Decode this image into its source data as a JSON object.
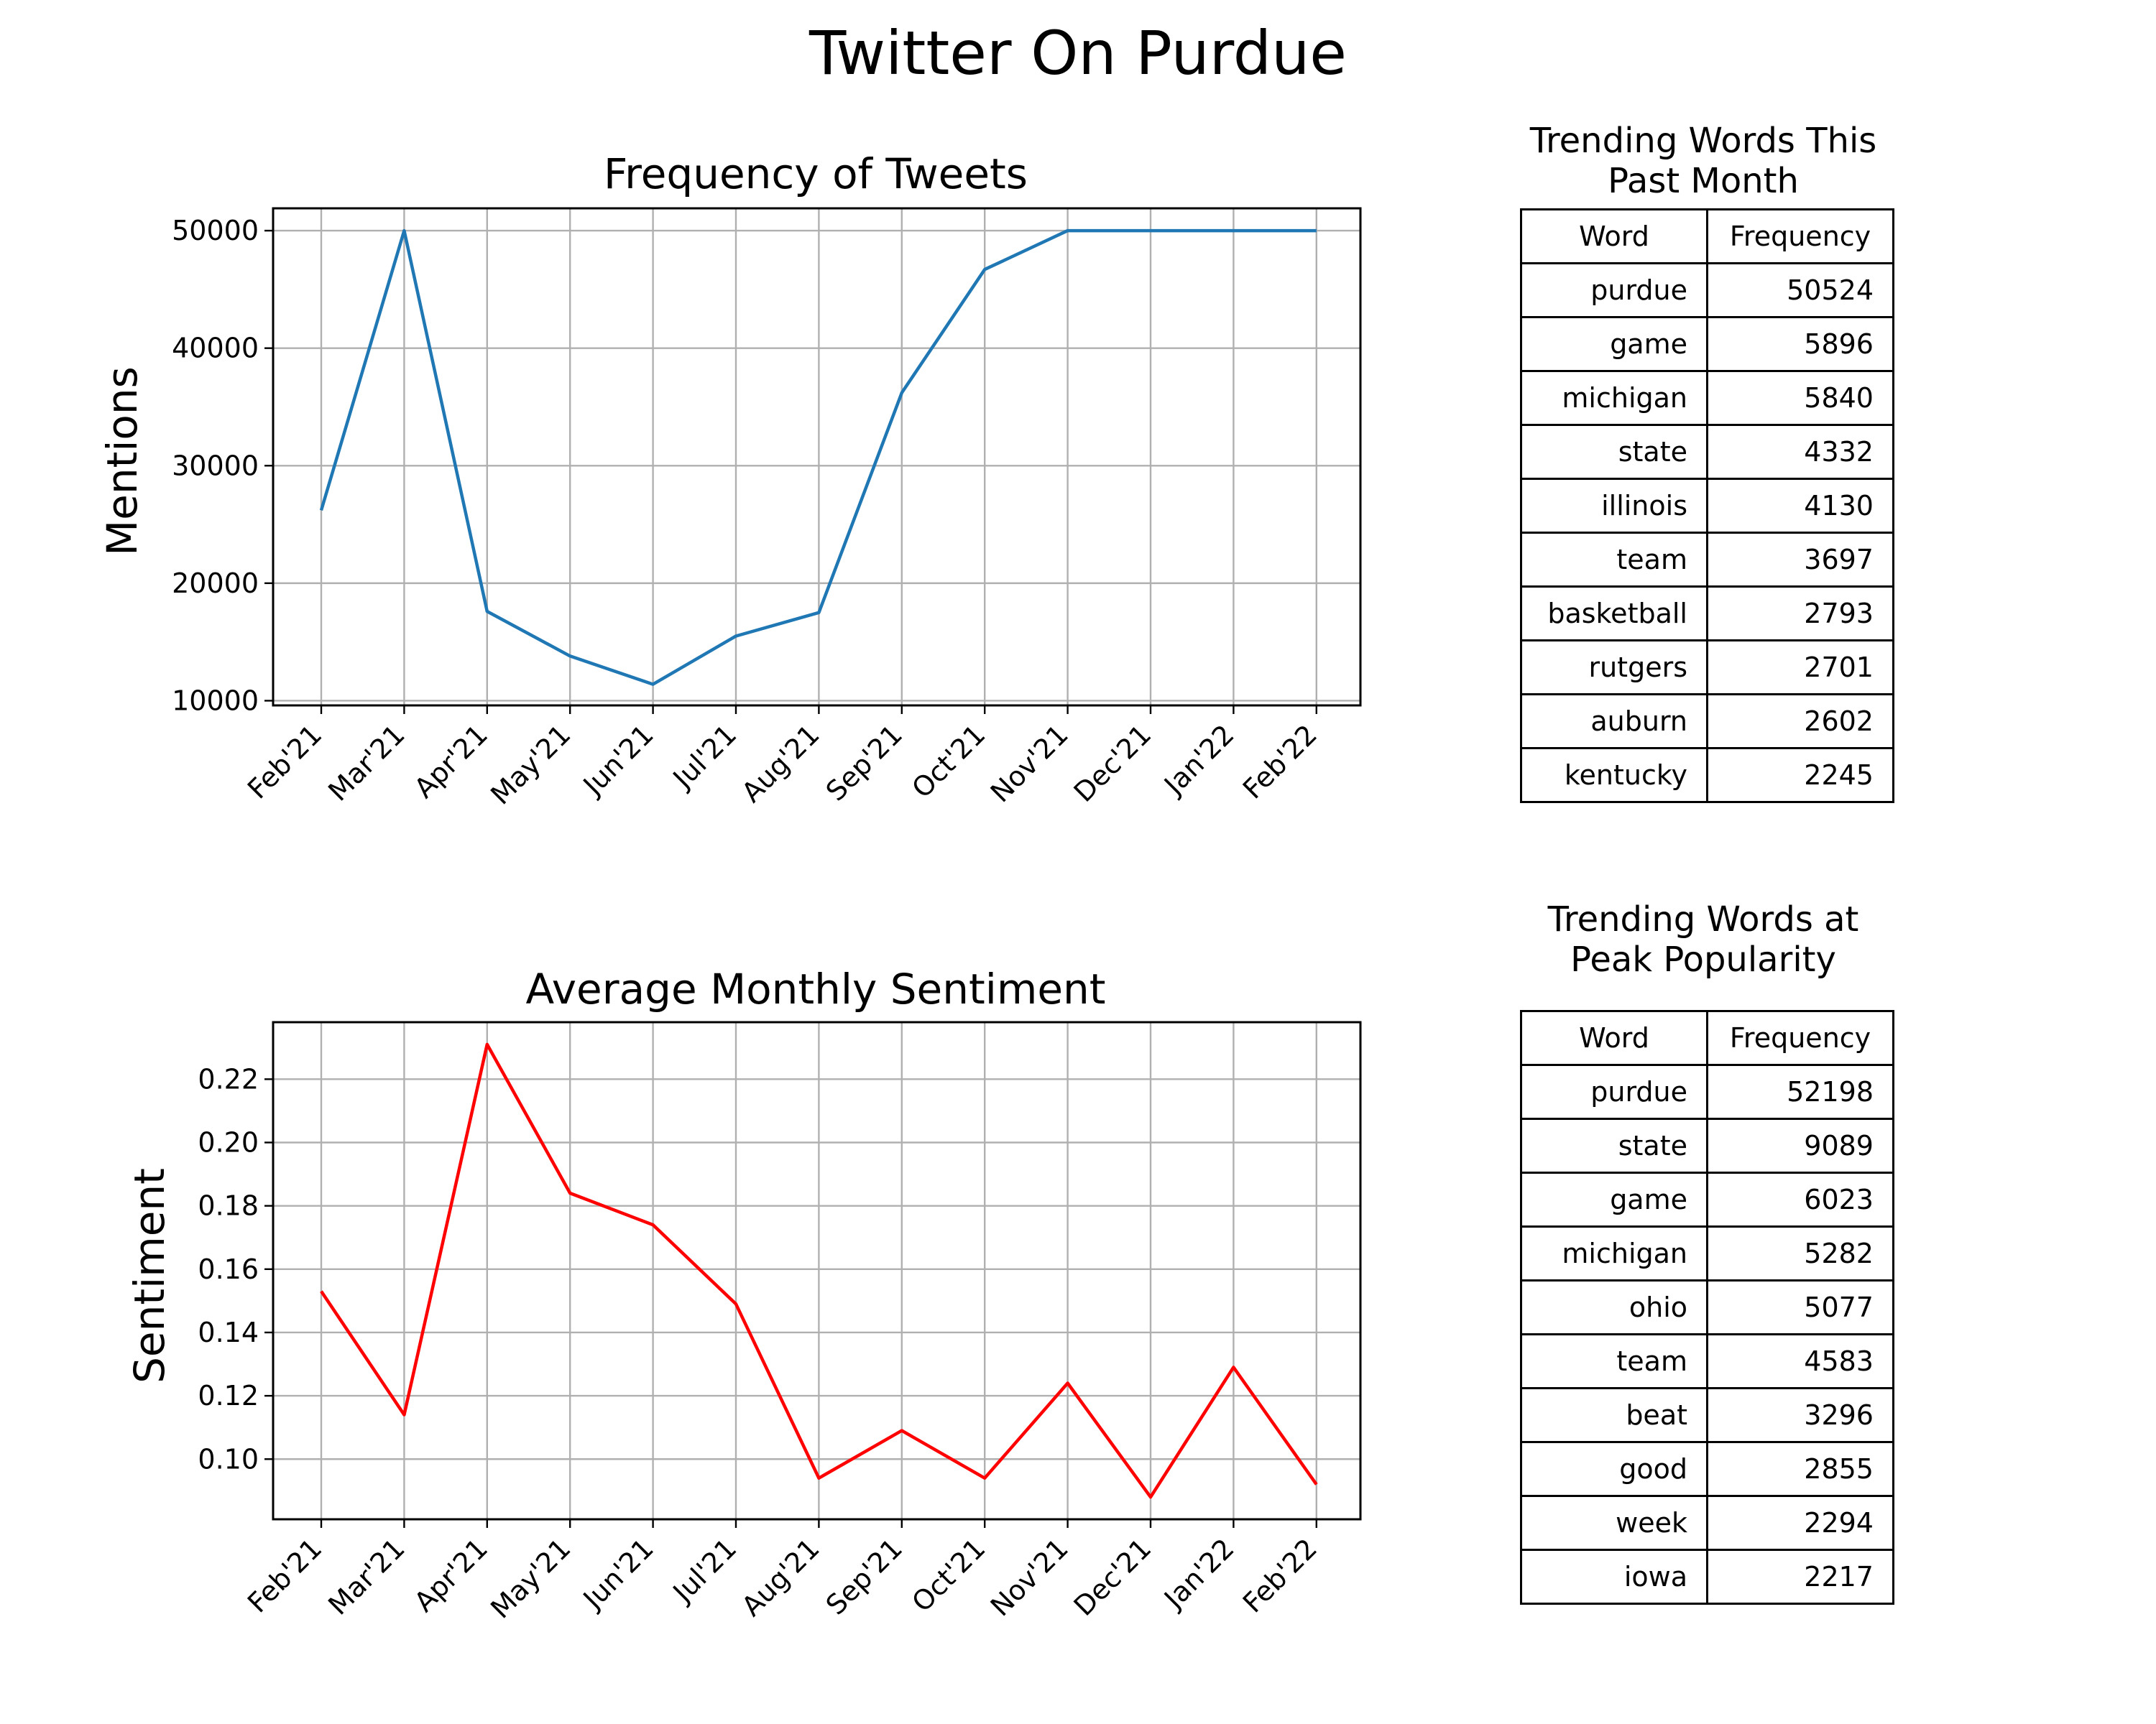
{
  "figure_title": "Twitter On Purdue",
  "chart_data": [
    {
      "type": "line",
      "title": "Frequency of Tweets",
      "xlabel": "",
      "ylabel": "Mentions",
      "categories": [
        "Feb'21",
        "Mar'21",
        "Apr'21",
        "May'21",
        "Jun'21",
        "Jul'21",
        "Aug'21",
        "Sep'21",
        "Oct'21",
        "Nov'21",
        "Dec'21",
        "Jan'22",
        "Feb'22"
      ],
      "values": [
        26200,
        50000,
        17600,
        13800,
        11400,
        15500,
        17500,
        36200,
        46700,
        50000,
        50000,
        50000,
        50000
      ],
      "yticks": [
        10000,
        20000,
        30000,
        40000,
        50000
      ],
      "ytick_labels": [
        "10000",
        "20000",
        "30000",
        "40000",
        "50000"
      ],
      "ylim": [
        9600,
        51900
      ],
      "color": "#1f77b4",
      "grid": true
    },
    {
      "type": "line",
      "title": "Average Monthly Sentiment",
      "xlabel": "",
      "ylabel": "Sentiment",
      "categories": [
        "Feb'21",
        "Mar'21",
        "Apr'21",
        "May'21",
        "Jun'21",
        "Jul'21",
        "Aug'21",
        "Sep'21",
        "Oct'21",
        "Nov'21",
        "Dec'21",
        "Jan'22",
        "Feb'22"
      ],
      "values": [
        0.153,
        0.114,
        0.231,
        0.184,
        0.174,
        0.149,
        0.094,
        0.109,
        0.094,
        0.124,
        0.088,
        0.129,
        0.092
      ],
      "yticks": [
        0.1,
        0.12,
        0.14,
        0.16,
        0.18,
        0.2,
        0.22
      ],
      "ytick_labels": [
        "0.10",
        "0.12",
        "0.14",
        "0.16",
        "0.18",
        "0.20",
        "0.22"
      ],
      "ylim": [
        0.081,
        0.238
      ],
      "color": "#ff0000",
      "grid": true
    },
    {
      "type": "table",
      "title": "Trending Words This Past Month",
      "columns": [
        "Word",
        "Frequency"
      ],
      "rows": [
        [
          "purdue",
          "50524"
        ],
        [
          "game",
          "5896"
        ],
        [
          "michigan",
          "5840"
        ],
        [
          "state",
          "4332"
        ],
        [
          "illinois",
          "4130"
        ],
        [
          "team",
          "3697"
        ],
        [
          "basketball",
          "2793"
        ],
        [
          "rutgers",
          "2701"
        ],
        [
          "auburn",
          "2602"
        ],
        [
          "kentucky",
          "2245"
        ]
      ]
    },
    {
      "type": "table",
      "title": "Trending Words at Peak Popularity",
      "columns": [
        "Word",
        "Frequency"
      ],
      "rows": [
        [
          "purdue",
          "52198"
        ],
        [
          "state",
          "9089"
        ],
        [
          "game",
          "6023"
        ],
        [
          "michigan",
          "5282"
        ],
        [
          "ohio",
          "5077"
        ],
        [
          "team",
          "4583"
        ],
        [
          "beat",
          "3296"
        ],
        [
          "good",
          "2855"
        ],
        [
          "week",
          "2294"
        ],
        [
          "iowa",
          "2217"
        ]
      ]
    }
  ]
}
